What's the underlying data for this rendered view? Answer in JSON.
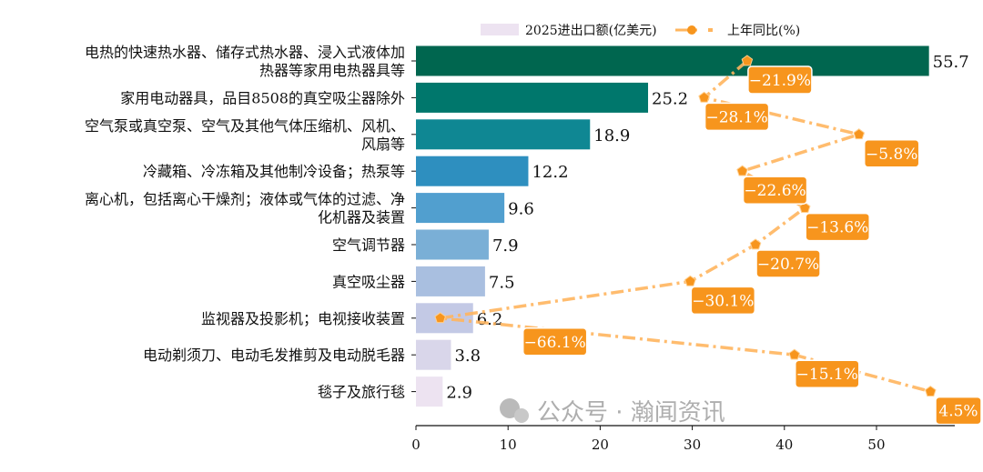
{
  "chart_data": {
    "type": "bar",
    "orientation": "horizontal",
    "categories": [
      [
        "电热的快速热水器、储存式热水器、浸入式液体加",
        "热器等家用电热器具等"
      ],
      [
        "家用电动器具，品目8508的真空吸尘器除外"
      ],
      [
        "空气泵或真空泵、空气及其他气体压缩机、风机、",
        "风扇等"
      ],
      [
        "冷藏箱、冷冻箱及其他制冷设备；热泵等"
      ],
      [
        "离心机，包括离心干燥剂；液体或气体的过滤、净",
        "化机器及装置"
      ],
      [
        "空气调节器"
      ],
      [
        "真空吸尘器"
      ],
      [
        "监视器及投影机；电视接收装置"
      ],
      [
        "电动剃须刀、电动毛发推剪及电动脱毛器"
      ],
      [
        "毯子及旅行毯"
      ]
    ],
    "series": [
      {
        "name": "2025进出口额(亿美元)",
        "type": "bar",
        "values": [
          55.7,
          25.2,
          18.9,
          12.2,
          9.6,
          7.9,
          7.5,
          6.2,
          3.8,
          2.9
        ],
        "colors": [
          "#00664f",
          "#00776c",
          "#0f8793",
          "#2e8fbf",
          "#519fcf",
          "#7aafd6",
          "#a9bfe0",
          "#c3c9e5",
          "#d9d6ea",
          "#ede3f1"
        ]
      },
      {
        "name": "上年同比(%)",
        "type": "line",
        "values": [
          -21.9,
          -28.1,
          -5.8,
          -22.6,
          -13.6,
          -20.7,
          -30.1,
          -66.1,
          -15.1,
          4.5
        ],
        "labels": [
          "−21.9%",
          "−28.1%",
          "−5.8%",
          "−22.6%",
          "−13.6%",
          "−20.7%",
          "−30.1%",
          "−66.1%",
          "−15.1%",
          "4.5%"
        ],
        "color": "#ffb55e",
        "marker_color": "#f7951d",
        "linestyle": "dash-dot"
      }
    ],
    "xlim": [
      0,
      58.5
    ],
    "xticks": [
      "0",
      "10",
      "20",
      "30",
      "40",
      "50"
    ],
    "secondary_xlim": [
      -69.6,
      8.0
    ],
    "legend": "top",
    "grid": false,
    "label_box_color": "#f7951d"
  },
  "watermark": "公众号 · 瀚闻资讯"
}
